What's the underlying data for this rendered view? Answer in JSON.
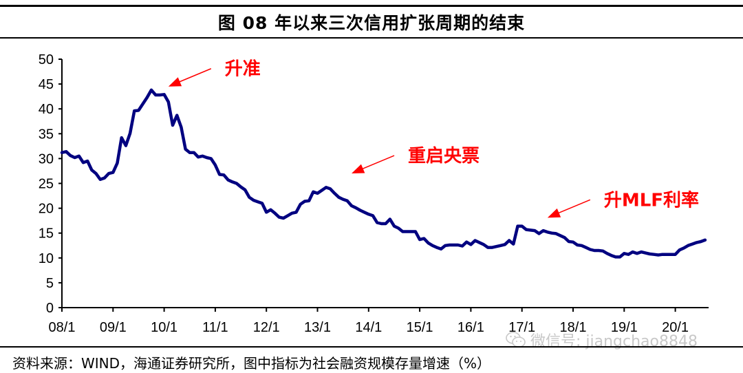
{
  "title": "图 08 年以来三次信用扩张周期的结束",
  "source": "资料来源：WIND，海通证券研究所，图中指标为社会融资规模存量增速（%）",
  "watermark": {
    "icon": "wechat-icon",
    "text": "微信号: jiangchao8848"
  },
  "colors": {
    "line": "#000080",
    "annotation": "#ff0000",
    "axis": "#000000"
  },
  "chart_data": {
    "type": "line",
    "title": "",
    "xlabel": "",
    "ylabel": "",
    "ylim": [
      0,
      50
    ],
    "yticks": [
      0,
      5,
      10,
      15,
      20,
      25,
      30,
      35,
      40,
      45,
      50
    ],
    "xticks": [
      "08/1",
      "09/1",
      "10/1",
      "11/1",
      "12/1",
      "13/1",
      "14/1",
      "15/1",
      "16/1",
      "17/1",
      "18/1",
      "19/1",
      "20/1"
    ],
    "grid": false,
    "legend": "none",
    "frequency": "monthly",
    "series": [
      {
        "values_by_year": {
          "2008": [
            31.2,
            31.4,
            30.6,
            30.2,
            30.5,
            29.2,
            29.5,
            27.7,
            27.0,
            25.8,
            26.1,
            27.0
          ],
          "2009": [
            27.2,
            29.1,
            34.2,
            32.6,
            35.1,
            39.6,
            39.7,
            41.0,
            42.3,
            43.8,
            42.8,
            42.8
          ],
          "2010": [
            42.9,
            41.4,
            36.7,
            38.7,
            36.3,
            31.9,
            31.2,
            31.2,
            30.3,
            30.5,
            30.2,
            30.0
          ],
          "2011": [
            28.7,
            26.8,
            26.7,
            25.7,
            25.3,
            25.0,
            24.3,
            23.7,
            22.2,
            21.6,
            21.3,
            21.0
          ],
          "2012": [
            19.2,
            19.7,
            19.0,
            18.2,
            18.0,
            18.5,
            19.0,
            19.2,
            20.8,
            21.4,
            21.5,
            23.3
          ],
          "2013": [
            23.0,
            23.6,
            24.2,
            23.9,
            23.0,
            22.2,
            21.8,
            21.5,
            20.5,
            20.1,
            19.6,
            19.2
          ],
          "2014": [
            18.8,
            18.5,
            17.1,
            16.9,
            16.9,
            17.8,
            16.4,
            16.0,
            15.3,
            15.3,
            15.3,
            15.3
          ],
          "2015": [
            13.7,
            13.9,
            13.0,
            12.5,
            12.1,
            11.8,
            12.5,
            12.6,
            12.6,
            12.6,
            12.4,
            13.2
          ],
          "2016": [
            12.7,
            13.5,
            13.1,
            12.7,
            12.1,
            12.1,
            12.3,
            12.5,
            12.7,
            13.5,
            12.8,
            16.4
          ],
          "2017": [
            16.4,
            15.7,
            15.6,
            15.5,
            14.9,
            15.5,
            15.2,
            15.0,
            14.9,
            14.5,
            14.1,
            13.3
          ],
          "2018": [
            13.2,
            12.6,
            12.5,
            12.1,
            11.7,
            11.5,
            11.5,
            11.4,
            10.9,
            10.5,
            10.2,
            10.2
          ],
          "2019": [
            10.9,
            10.7,
            11.2,
            10.9,
            11.2,
            11.0,
            10.8,
            10.7,
            10.6,
            10.7,
            10.7,
            10.7
          ],
          "2020": [
            10.7,
            11.6,
            12.0,
            12.5,
            12.8,
            13.1,
            13.3,
            13.6
          ]
        }
      }
    ],
    "annotations": [
      {
        "text": "升准",
        "date": "2010-02",
        "value": 44.5
      },
      {
        "text": "重启央票",
        "date": "2013-09",
        "value": 27.0
      },
      {
        "text": "升MLF利率",
        "date": "2017-07",
        "value": 18.1
      }
    ]
  }
}
